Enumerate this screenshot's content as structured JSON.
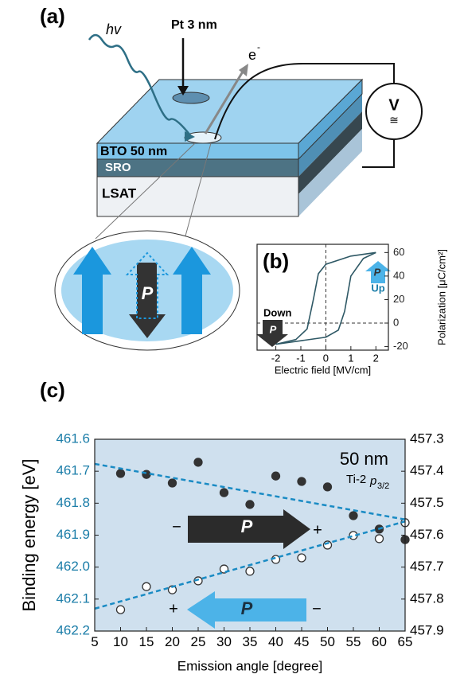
{
  "panel_a": {
    "label": "(a)",
    "light": "hv",
    "electrode": "Pt 3 nm",
    "electron": "e",
    "electron_charge": "-",
    "voltmeter": "V",
    "ac": "≅",
    "layers": [
      "BTO 50 nm",
      "SRO",
      "LSAT"
    ],
    "polarization": "P"
  },
  "chart_data": [
    {
      "type": "line",
      "panel_label": "(b)",
      "xlabel": "Electric field [MV/cm]",
      "ylabel": "Polarization [μC/cm²]",
      "xlim": [
        -2.75,
        2.5
      ],
      "ylim": [
        -23,
        67
      ],
      "xticks": [
        -2,
        -1,
        0,
        1,
        2
      ],
      "yticks": [
        -20,
        0,
        20,
        40,
        60
      ],
      "zero_lines": true,
      "series": [
        {
          "color": "#2e5865",
          "x": [
            -2,
            -1,
            0,
            0.5,
            0.75,
            1,
            1.5,
            2
          ],
          "values": [
            -18,
            -15,
            -12,
            -6,
            10,
            40,
            55,
            60
          ]
        },
        {
          "color": "#2e5865",
          "x": [
            2,
            1,
            0,
            -0.3,
            -0.5,
            -0.75,
            -1.2,
            -2
          ],
          "values": [
            60,
            57,
            50,
            42,
            20,
            -5,
            -14,
            -18
          ]
        }
      ],
      "annotations": [
        "Down",
        "P",
        "Up",
        "P"
      ]
    },
    {
      "type": "scatter",
      "panel_label": "(c)",
      "xlabel": "Emission angle [degree]",
      "ylabel": "Binding energy [eV]",
      "xlim": [
        5,
        65
      ],
      "ylim": [
        461.6,
        462.2
      ],
      "inverted": true,
      "y2lim": [
        457.3,
        457.9
      ],
      "xticks": [
        5,
        10,
        15,
        20,
        25,
        30,
        35,
        40,
        45,
        50,
        55,
        60,
        65
      ],
      "yticks": [
        461.6,
        461.7,
        461.8,
        461.9,
        {
          "value": 462,
          "label": "462.0"
        },
        462.1,
        462.2
      ],
      "y2ticks": [
        457.3,
        457.4,
        457.5,
        457.6,
        457.7,
        457.8,
        457.9
      ],
      "ytick_color": "#1b7da8",
      "background": "#cfe0ee",
      "series": [
        {
          "color": "#333333",
          "marker": "filled",
          "x": [
            10,
            15,
            20,
            25,
            30,
            35,
            40,
            45,
            50,
            55,
            60,
            65
          ],
          "values": [
            461.707,
            461.71,
            461.737,
            461.672,
            461.767,
            461.804,
            461.715,
            461.732,
            461.749,
            461.839,
            461.881,
            461.914
          ]
        },
        {
          "color": "#333333",
          "marker": "open",
          "x": [
            10,
            15,
            20,
            25,
            30,
            35,
            40,
            45,
            50,
            55,
            60,
            65
          ],
          "values": [
            462.133,
            462.061,
            462.071,
            462.043,
            462.006,
            462.013,
            461.976,
            461.971,
            461.931,
            461.901,
            461.911,
            461.861
          ]
        },
        {
          "color": "#1a8bc4",
          "style": "dashed",
          "x": [
            5,
            65
          ],
          "values": [
            461.677,
            461.851
          ]
        },
        {
          "color": "#1a8bc4",
          "style": "dashed",
          "x": [
            5,
            65
          ],
          "values": [
            462.13,
            461.857
          ]
        }
      ],
      "annotations": [
        "50 nm",
        "Ti-2",
        "p",
        "3/2",
        "−",
        "P",
        "+",
        "+",
        "P",
        "−"
      ]
    }
  ]
}
